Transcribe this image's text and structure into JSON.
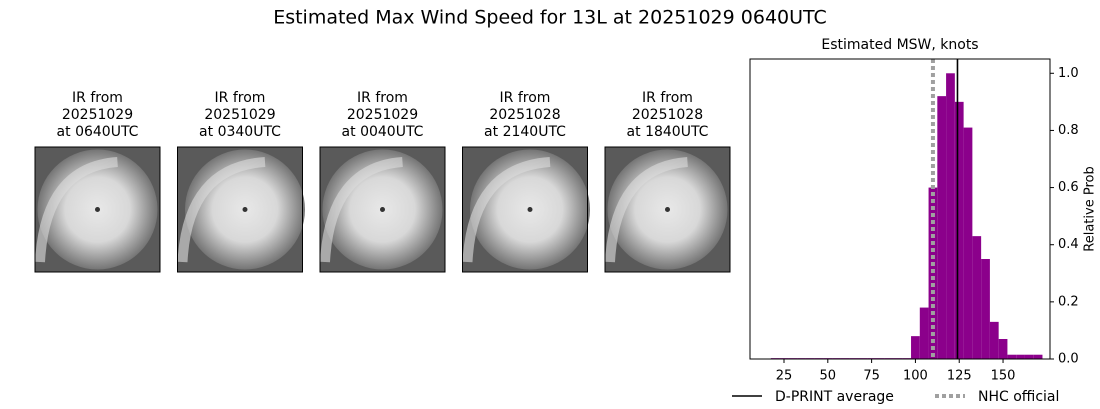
{
  "title": "Estimated Max Wind Speed for 13L at 20251029 0640UTC",
  "panels": [
    {
      "lines": [
        "IR from",
        "20251029",
        "at 0640UTC"
      ]
    },
    {
      "lines": [
        "IR from",
        "20251029",
        "at 0340UTC"
      ]
    },
    {
      "lines": [
        "IR from",
        "20251029",
        "at 0040UTC"
      ]
    },
    {
      "lines": [
        "IR from",
        "20251028",
        "at 2140UTC"
      ]
    },
    {
      "lines": [
        "IR from",
        "20251028",
        "at 1840UTC"
      ]
    }
  ],
  "chart_data": {
    "type": "histogram",
    "title": "Estimated MSW, knots",
    "y_label": "Relative Prob",
    "bins": [
      17.5,
      22.5,
      27.5,
      32.5,
      37.5,
      42.5,
      47.5,
      52.5,
      57.5,
      62.5,
      67.5,
      72.5,
      77.5,
      82.5,
      87.5,
      92.5,
      97.5,
      102.5,
      107.5,
      112.5,
      117.5,
      122.5,
      127.5,
      132.5,
      137.5,
      142.5,
      147.5,
      152.5,
      157.5,
      162.5,
      167.5,
      172.5
    ],
    "values": [
      0.003,
      0.003,
      0.003,
      0.003,
      0.003,
      0.003,
      0.003,
      0.003,
      0.003,
      0.003,
      0.003,
      0.003,
      0.003,
      0.003,
      0.003,
      0.003,
      0.08,
      0.18,
      0.6,
      0.92,
      1.0,
      0.9,
      0.81,
      0.43,
      0.35,
      0.13,
      0.07,
      0.015,
      0.015,
      0.015,
      0.015
    ],
    "color": "#8b008b",
    "xlim": [
      5.6,
      176.8
    ],
    "ylim": [
      0,
      1.05
    ],
    "xticks": [
      25,
      50,
      75,
      100,
      125,
      150
    ],
    "yticks": [
      {
        "value": 0,
        "label": "0.0"
      },
      0.2,
      0.4,
      0.6,
      0.8,
      {
        "value": 1,
        "label": "1.0"
      }
    ],
    "y_axis_side": "right",
    "reference_lines": [
      {
        "name": "D-PRINT average",
        "value": 124,
        "color": "#000000",
        "style": "solid"
      },
      {
        "name": "NHC official",
        "value": 110,
        "color": "#a0a0a0",
        "style": "dotted"
      }
    ],
    "legend": "below"
  }
}
